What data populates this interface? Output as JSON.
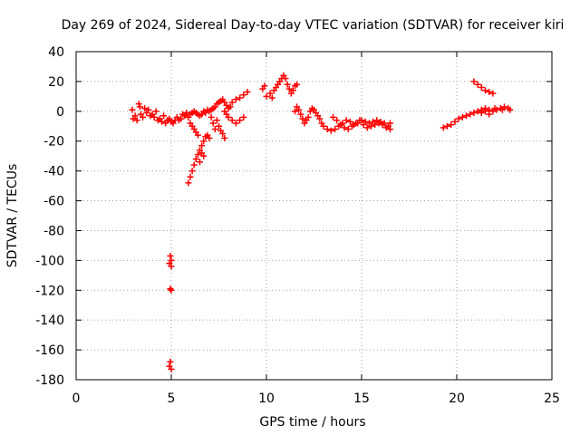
{
  "chart_data": {
    "type": "scatter",
    "title": "Day 269 of 2024, Sidereal Day-to-day VTEC variation (SDTVAR) for receiver kiri",
    "xlabel": "GPS time / hours",
    "ylabel": "SDTVAR / TECUs",
    "xlim": [
      0,
      25
    ],
    "ylim": [
      -180,
      40
    ],
    "xticks": [
      0,
      5,
      10,
      15,
      20,
      25
    ],
    "yticks": [
      40,
      20,
      0,
      -20,
      -40,
      -60,
      -80,
      -100,
      -120,
      -140,
      -160,
      -180
    ],
    "grid": true,
    "marker": "plus",
    "color": "#ff0000",
    "points": [
      [
        2.95,
        1
      ],
      [
        3.0,
        -5
      ],
      [
        3.1,
        -3
      ],
      [
        3.2,
        -6
      ],
      [
        3.3,
        5
      ],
      [
        3.35,
        3
      ],
      [
        3.4,
        -2
      ],
      [
        3.5,
        -4
      ],
      [
        3.6,
        2
      ],
      [
        3.7,
        -1
      ],
      [
        3.8,
        1
      ],
      [
        3.9,
        -3
      ],
      [
        4.0,
        -2
      ],
      [
        4.1,
        -4
      ],
      [
        4.2,
        0
      ],
      [
        4.3,
        -6
      ],
      [
        4.4,
        -5
      ],
      [
        4.5,
        -7
      ],
      [
        4.6,
        -3
      ],
      [
        4.7,
        -8
      ],
      [
        4.8,
        -6
      ],
      [
        4.9,
        -5
      ],
      [
        5.0,
        -7
      ],
      [
        5.1,
        -8
      ],
      [
        5.2,
        -6
      ],
      [
        5.3,
        -4
      ],
      [
        5.4,
        -6
      ],
      [
        5.5,
        -5
      ],
      [
        5.6,
        -2
      ],
      [
        5.7,
        -3
      ],
      [
        5.8,
        -1
      ],
      [
        5.9,
        -4
      ],
      [
        6.0,
        -2
      ],
      [
        6.1,
        -1
      ],
      [
        6.2,
        0
      ],
      [
        6.3,
        -1
      ],
      [
        6.4,
        -2
      ],
      [
        6.5,
        -3
      ],
      [
        6.6,
        -2
      ],
      [
        6.7,
        0
      ],
      [
        6.8,
        -1
      ],
      [
        6.9,
        1
      ],
      [
        7.0,
        0
      ],
      [
        7.1,
        1
      ],
      [
        7.2,
        2
      ],
      [
        7.3,
        3
      ],
      [
        7.4,
        5
      ],
      [
        7.5,
        6
      ],
      [
        7.6,
        7
      ],
      [
        7.7,
        8
      ],
      [
        7.8,
        6
      ],
      [
        7.9,
        4
      ],
      [
        8.0,
        2
      ],
      [
        8.1,
        3
      ],
      [
        8.2,
        6
      ],
      [
        8.4,
        8
      ],
      [
        8.6,
        9
      ],
      [
        8.8,
        11
      ],
      [
        9.0,
        13
      ],
      [
        6.0,
        -8
      ],
      [
        6.1,
        -10
      ],
      [
        6.2,
        -12
      ],
      [
        6.3,
        -14
      ],
      [
        6.4,
        -16
      ],
      [
        5.9,
        -48
      ],
      [
        6.0,
        -44
      ],
      [
        6.1,
        -40
      ],
      [
        6.2,
        -36
      ],
      [
        6.3,
        -32
      ],
      [
        6.4,
        -29
      ],
      [
        6.5,
        -26
      ],
      [
        6.6,
        -23
      ],
      [
        6.7,
        -20
      ],
      [
        6.8,
        -17
      ],
      [
        6.9,
        -16
      ],
      [
        7.0,
        -18
      ],
      [
        6.6,
        -28
      ],
      [
        6.7,
        -30
      ],
      [
        6.5,
        -34
      ],
      [
        7.1,
        -4
      ],
      [
        7.2,
        -8
      ],
      [
        7.3,
        -12
      ],
      [
        7.4,
        -6
      ],
      [
        7.5,
        -10
      ],
      [
        7.6,
        -13
      ],
      [
        7.7,
        -15
      ],
      [
        7.8,
        -18
      ],
      [
        7.8,
        0
      ],
      [
        7.9,
        -2
      ],
      [
        8.0,
        -4
      ],
      [
        8.2,
        -6
      ],
      [
        8.4,
        -8
      ],
      [
        8.6,
        -6
      ],
      [
        8.8,
        -4
      ],
      [
        4.95,
        -97
      ],
      [
        5.0,
        -100
      ],
      [
        4.9,
        -102
      ],
      [
        5.0,
        -104
      ],
      [
        4.95,
        -119
      ],
      [
        5.0,
        -120
      ],
      [
        4.95,
        -168
      ],
      [
        4.9,
        -171
      ],
      [
        5.0,
        -173
      ],
      [
        9.8,
        15
      ],
      [
        9.9,
        17
      ],
      [
        10.0,
        10
      ],
      [
        10.2,
        12
      ],
      [
        10.3,
        9
      ],
      [
        10.4,
        14
      ],
      [
        10.5,
        16
      ],
      [
        10.6,
        18
      ],
      [
        10.7,
        20
      ],
      [
        10.8,
        22
      ],
      [
        10.9,
        24
      ],
      [
        11.0,
        22
      ],
      [
        11.1,
        18
      ],
      [
        11.2,
        15
      ],
      [
        11.3,
        12
      ],
      [
        11.4,
        14
      ],
      [
        11.5,
        17
      ],
      [
        11.6,
        18
      ],
      [
        11.5,
        0
      ],
      [
        11.6,
        3
      ],
      [
        11.7,
        1
      ],
      [
        11.8,
        -2
      ],
      [
        11.9,
        -5
      ],
      [
        12.0,
        -8
      ],
      [
        12.1,
        -6
      ],
      [
        12.2,
        -4
      ],
      [
        12.3,
        0
      ],
      [
        12.4,
        2
      ],
      [
        12.5,
        1
      ],
      [
        12.6,
        -1
      ],
      [
        12.7,
        -3
      ],
      [
        12.8,
        -5
      ],
      [
        12.9,
        -8
      ],
      [
        13.0,
        -10
      ],
      [
        13.2,
        -12
      ],
      [
        13.4,
        -13
      ],
      [
        13.6,
        -12
      ],
      [
        13.8,
        -10
      ],
      [
        14.0,
        -8
      ],
      [
        14.2,
        -6
      ],
      [
        14.4,
        -7
      ],
      [
        14.6,
        -9
      ],
      [
        14.8,
        -8
      ],
      [
        15.0,
        -6
      ],
      [
        15.2,
        -7
      ],
      [
        15.4,
        -8
      ],
      [
        15.6,
        -7
      ],
      [
        15.8,
        -6
      ],
      [
        16.0,
        -7
      ],
      [
        16.2,
        -8
      ],
      [
        16.4,
        -10
      ],
      [
        16.5,
        -12
      ],
      [
        13.5,
        -4
      ],
      [
        13.7,
        -6
      ],
      [
        13.9,
        -9
      ],
      [
        14.1,
        -11
      ],
      [
        14.3,
        -12
      ],
      [
        14.5,
        -10
      ],
      [
        14.7,
        -8
      ],
      [
        14.9,
        -6
      ],
      [
        15.1,
        -9
      ],
      [
        15.3,
        -11
      ],
      [
        15.5,
        -10
      ],
      [
        15.7,
        -9
      ],
      [
        15.9,
        -8
      ],
      [
        16.1,
        -9
      ],
      [
        16.3,
        -11
      ],
      [
        16.5,
        -8
      ],
      [
        19.3,
        -11
      ],
      [
        19.5,
        -10
      ],
      [
        19.7,
        -9
      ],
      [
        19.9,
        -7
      ],
      [
        20.1,
        -5
      ],
      [
        20.3,
        -4
      ],
      [
        20.5,
        -3
      ],
      [
        20.7,
        -2
      ],
      [
        20.9,
        -1
      ],
      [
        21.1,
        0
      ],
      [
        21.3,
        1
      ],
      [
        21.5,
        2
      ],
      [
        21.7,
        1
      ],
      [
        21.9,
        0
      ],
      [
        22.1,
        1
      ],
      [
        22.3,
        2
      ],
      [
        22.5,
        3
      ],
      [
        22.7,
        2
      ],
      [
        22.8,
        1
      ],
      [
        21.3,
        -1
      ],
      [
        21.5,
        0
      ],
      [
        21.7,
        -2
      ],
      [
        22.0,
        2
      ],
      [
        22.4,
        1
      ],
      [
        20.9,
        20
      ],
      [
        21.1,
        18
      ],
      [
        21.3,
        16
      ],
      [
        21.5,
        14
      ],
      [
        21.7,
        13
      ],
      [
        21.9,
        12
      ]
    ]
  }
}
